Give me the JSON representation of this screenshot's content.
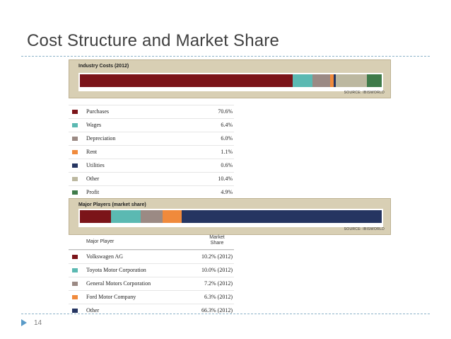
{
  "slide": {
    "title": "Cost Structure and Market Share",
    "number": "14"
  },
  "colors": {
    "maroon": "#7b1419",
    "teal": "#5bb9b2",
    "taupe": "#9b8a84",
    "orange": "#f08a3c",
    "navy": "#253561",
    "khaki": "#bcb8a0",
    "green": "#3f7b4a",
    "panel_bg": "#d8cfb4"
  },
  "chart_data": [
    {
      "type": "bar",
      "orientation": "stacked-horizontal",
      "title": "Industry Costs (2012)",
      "source": "SOURCE: IBISWORLD",
      "categories": [
        "Purchases",
        "Wages",
        "Depreciation",
        "Rent",
        "Utilities",
        "Other",
        "Profit"
      ],
      "values": [
        70.6,
        6.4,
        6.0,
        1.1,
        0.6,
        10.4,
        4.9
      ],
      "labels": [
        "70.6%",
        "6.4%",
        "6.0%",
        "1.1%",
        "0.6%",
        "10.4%",
        "4.9%"
      ],
      "series_colors": [
        "#7b1419",
        "#5bb9b2",
        "#9b8a84",
        "#f08a3c",
        "#253561",
        "#bcb8a0",
        "#3f7b4a"
      ]
    },
    {
      "type": "bar",
      "orientation": "stacked-horizontal",
      "title": "Major Players (market share)",
      "source": "SOURCE: IBISWORLD",
      "column_headers": {
        "player": "Major Player",
        "share_line1": "Market",
        "share_line2": "Share"
      },
      "categories": [
        "Volkswagen AG",
        "Toyota Motor Corporation",
        "General Motors Corporation",
        "Ford Motor Company",
        "Other"
      ],
      "values": [
        10.2,
        10.0,
        7.2,
        6.3,
        66.3
      ],
      "labels": [
        "10.2% (2012)",
        "10.0% (2012)",
        "7.2% (2012)",
        "6.3% (2012)",
        "66.3% (2012)"
      ],
      "series_colors": [
        "#7b1419",
        "#5bb9b2",
        "#9b8a84",
        "#f08a3c",
        "#253561"
      ]
    }
  ]
}
